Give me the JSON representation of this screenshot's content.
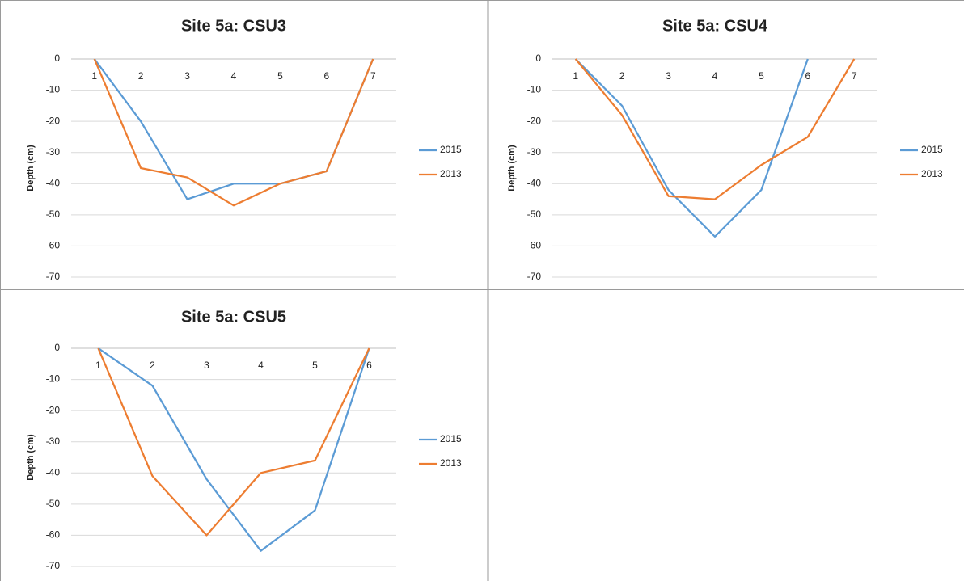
{
  "chart_data": [
    {
      "type": "line",
      "title": "Site 5a: CSU3",
      "ylabel": "Depth (cm)",
      "categories": [
        "1",
        "2",
        "3",
        "4",
        "5",
        "6",
        "7"
      ],
      "series": [
        {
          "name": "2015",
          "color": "#5b9bd5",
          "values": [
            0,
            -20,
            -45,
            -40,
            -40,
            -36,
            0
          ]
        },
        {
          "name": "2013",
          "color": "#ed7d31",
          "values": [
            0,
            -35,
            -38,
            -47,
            -40,
            -36,
            0
          ]
        }
      ],
      "ylim": [
        -70,
        0
      ],
      "yticks": [
        0,
        -10,
        -20,
        -30,
        -40,
        -50,
        -60,
        -70
      ],
      "grid": true,
      "legend": "right"
    },
    {
      "type": "line",
      "title": "Site 5a: CSU4",
      "ylabel": "Depth (cm)",
      "categories": [
        "1",
        "2",
        "3",
        "4",
        "5",
        "6",
        "7"
      ],
      "series": [
        {
          "name": "2015",
          "color": "#5b9bd5",
          "values": [
            0,
            -15,
            -42,
            -57,
            -42,
            0,
            null
          ]
        },
        {
          "name": "2013",
          "color": "#ed7d31",
          "values": [
            0,
            -18,
            -44,
            -45,
            -34,
            -25,
            0
          ]
        }
      ],
      "ylim": [
        -70,
        0
      ],
      "yticks": [
        0,
        -10,
        -20,
        -30,
        -40,
        -50,
        -60,
        -70
      ],
      "grid": true,
      "legend": "right"
    },
    {
      "type": "line",
      "title": "Site 5a: CSU5",
      "ylabel": "Depth (cm)",
      "categories": [
        "1",
        "2",
        "3",
        "4",
        "5",
        "6"
      ],
      "series": [
        {
          "name": "2015",
          "color": "#5b9bd5",
          "values": [
            0,
            -12,
            -42,
            -65,
            -52,
            0
          ]
        },
        {
          "name": "2013",
          "color": "#ed7d31",
          "values": [
            0,
            -41,
            -60,
            -40,
            -36,
            0
          ]
        }
      ],
      "ylim": [
        -70,
        0
      ],
      "yticks": [
        0,
        -10,
        -20,
        -30,
        -40,
        -50,
        -60,
        -70
      ],
      "grid": true,
      "legend": "right"
    }
  ]
}
